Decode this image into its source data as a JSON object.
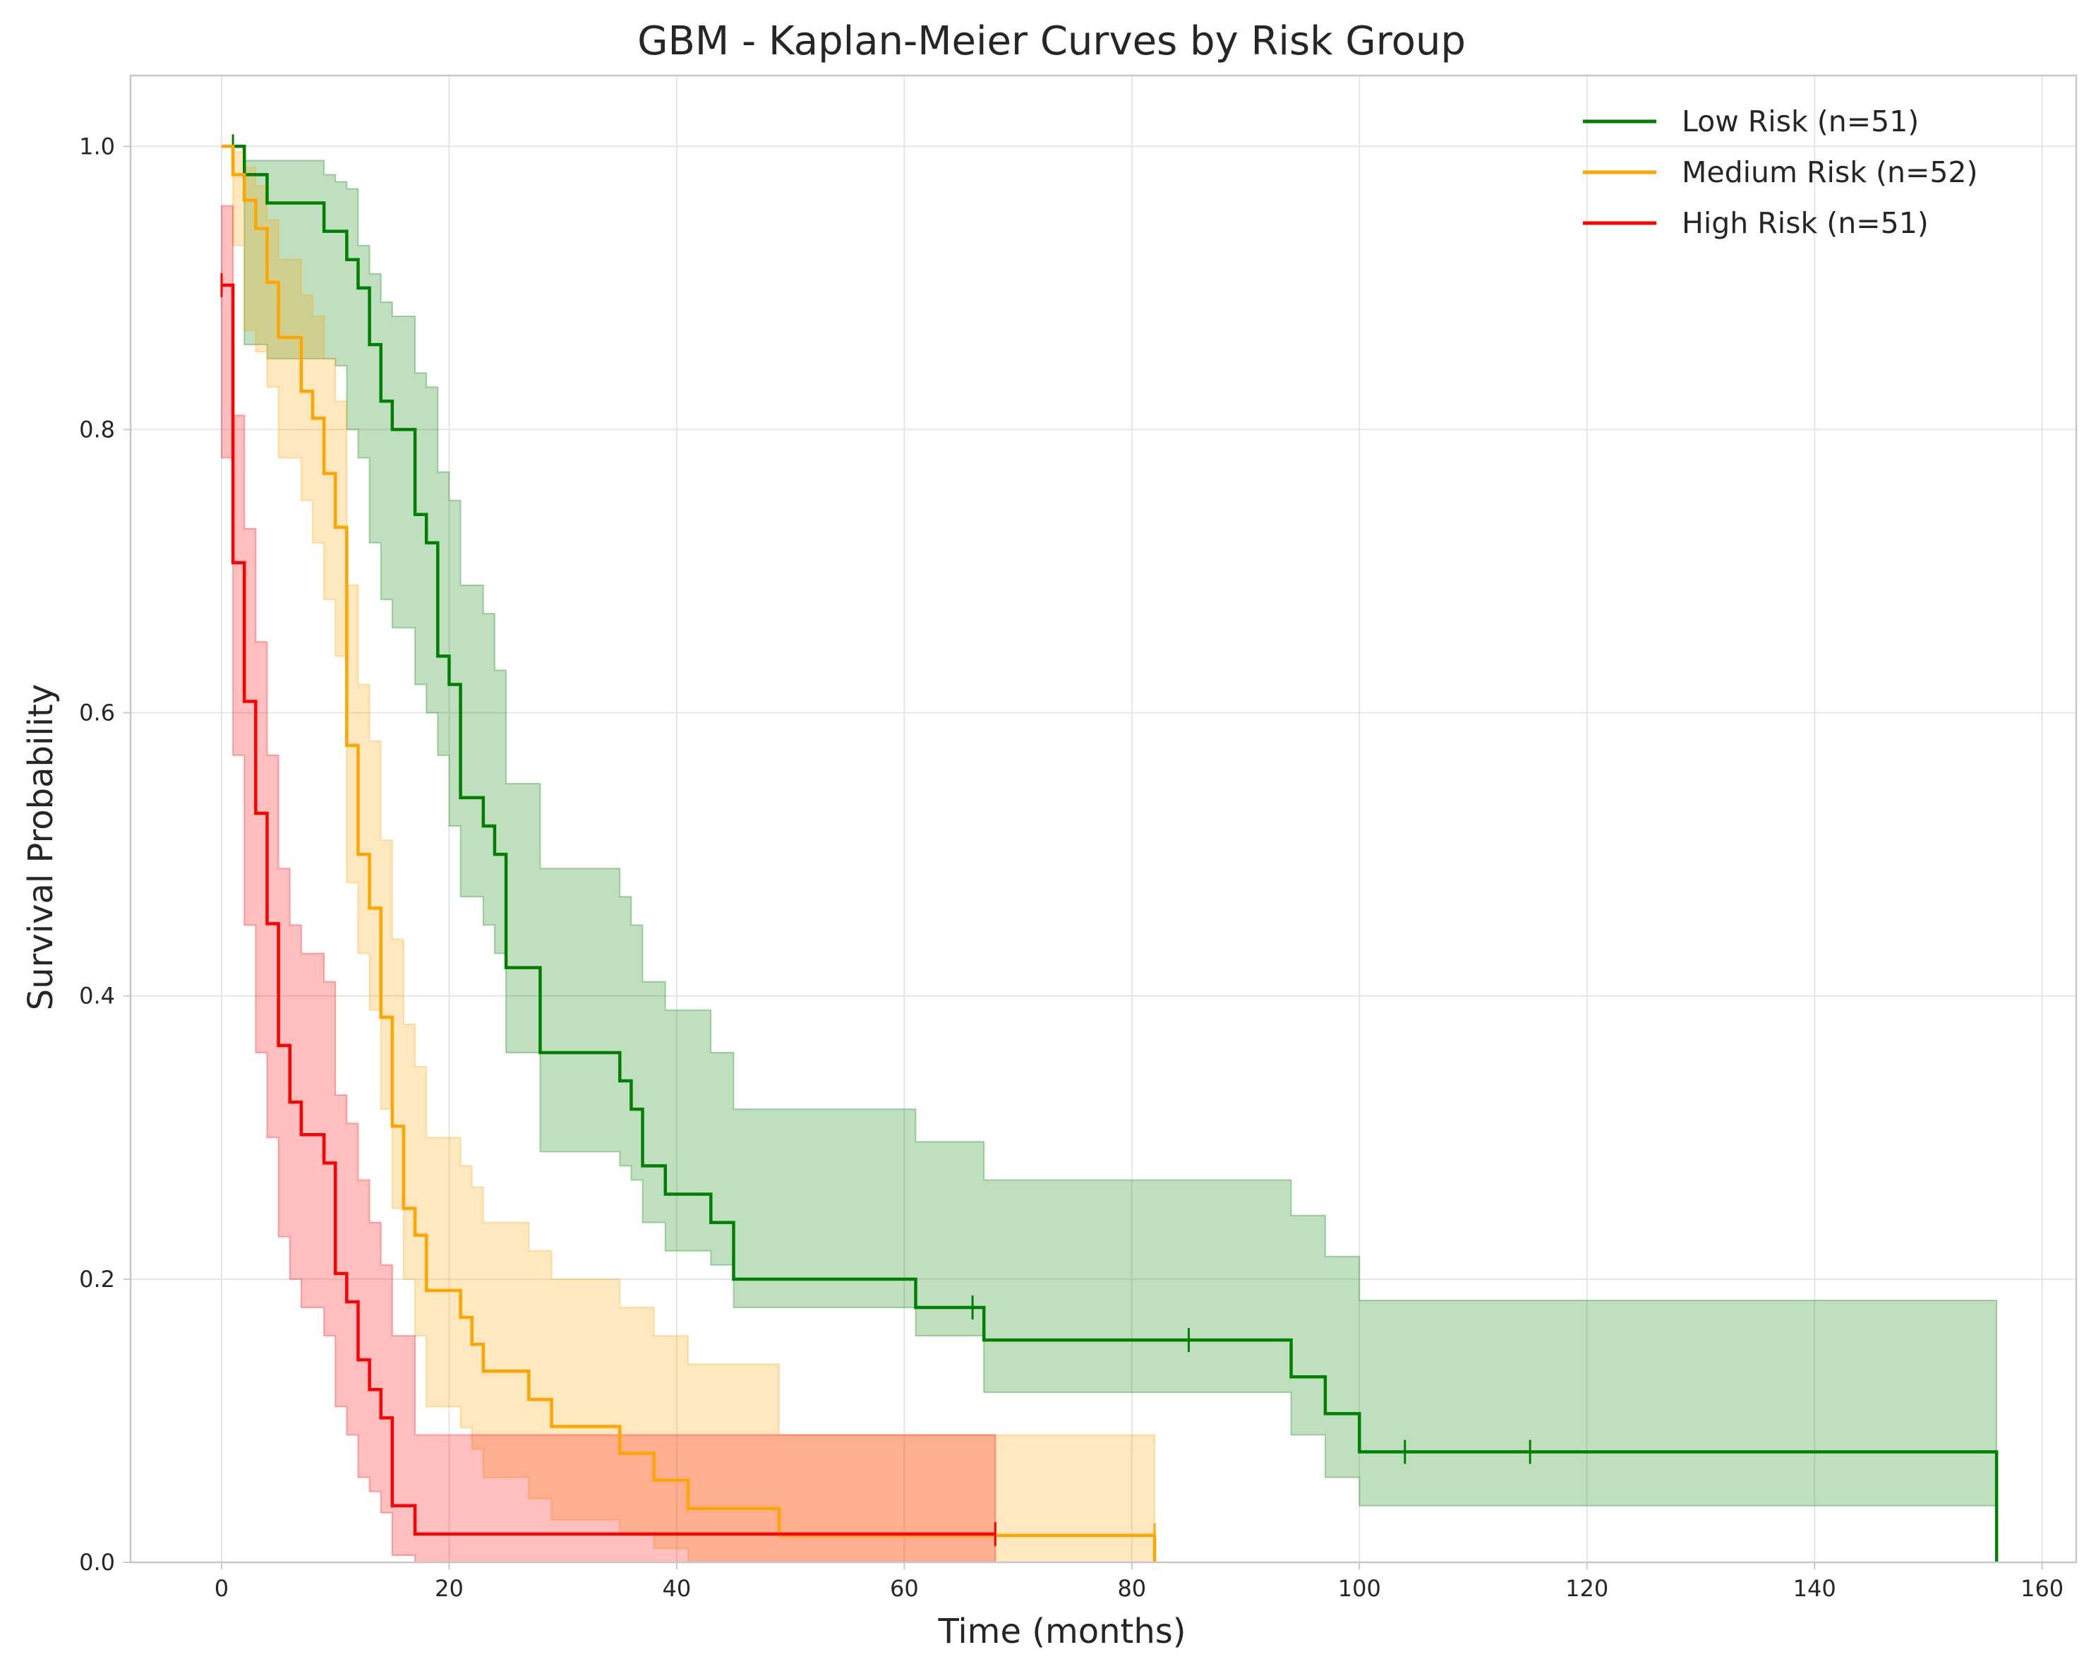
{
  "chart_data": {
    "type": "line",
    "title": "GBM - Kaplan-Meier Curves by Risk Group",
    "xlabel": "Time (months)",
    "ylabel": "Survival Probability",
    "xlim": [
      -8,
      163
    ],
    "ylim": [
      0,
      1.05
    ],
    "xticks": [
      0,
      20,
      40,
      60,
      80,
      100,
      120,
      140,
      160
    ],
    "yticks": [
      0.0,
      0.2,
      0.4,
      0.6,
      0.8,
      1.0
    ],
    "xtick_labels": [
      "0",
      "20",
      "40",
      "60",
      "80",
      "100",
      "120",
      "140",
      "160"
    ],
    "ytick_labels": [
      "0.0",
      "0.2",
      "0.4",
      "0.6",
      "0.8",
      "1.0"
    ],
    "grid": true,
    "legend_position": "top-right",
    "series": [
      {
        "name": "Low Risk (n=51)",
        "color": "#008000",
        "steps": [
          [
            0,
            1.0
          ],
          [
            1,
            1.0
          ],
          [
            2,
            0.98
          ],
          [
            4,
            0.96
          ],
          [
            9,
            0.94
          ],
          [
            11,
            0.92
          ],
          [
            12,
            0.9
          ],
          [
            13,
            0.86
          ],
          [
            14,
            0.82
          ],
          [
            15,
            0.8
          ],
          [
            17,
            0.74
          ],
          [
            18,
            0.72
          ],
          [
            19,
            0.64
          ],
          [
            20,
            0.62
          ],
          [
            21,
            0.54
          ],
          [
            23,
            0.52
          ],
          [
            24,
            0.5
          ],
          [
            25,
            0.42
          ],
          [
            28,
            0.36
          ],
          [
            35,
            0.34
          ],
          [
            36,
            0.32
          ],
          [
            37,
            0.28
          ],
          [
            39,
            0.26
          ],
          [
            43,
            0.24
          ],
          [
            45,
            0.2
          ],
          [
            61,
            0.18
          ],
          [
            67,
            0.157
          ],
          [
            94,
            0.131
          ],
          [
            97,
            0.105
          ],
          [
            100,
            0.078
          ],
          [
            156,
            0.078
          ],
          [
            156,
            0.0
          ]
        ],
        "ci": [
          [
            0,
            1.0,
            1.0
          ],
          [
            2,
            0.99,
            0.86
          ],
          [
            4,
            0.99,
            0.85
          ],
          [
            9,
            0.98,
            0.85
          ],
          [
            10,
            0.975,
            0.845
          ],
          [
            11,
            0.97,
            0.8
          ],
          [
            12,
            0.93,
            0.78
          ],
          [
            13,
            0.91,
            0.72
          ],
          [
            14,
            0.89,
            0.68
          ],
          [
            15,
            0.88,
            0.66
          ],
          [
            17,
            0.84,
            0.62
          ],
          [
            18,
            0.83,
            0.6
          ],
          [
            19,
            0.77,
            0.57
          ],
          [
            20,
            0.75,
            0.52
          ],
          [
            21,
            0.69,
            0.47
          ],
          [
            23,
            0.67,
            0.45
          ],
          [
            24,
            0.63,
            0.43
          ],
          [
            25,
            0.55,
            0.36
          ],
          [
            28,
            0.49,
            0.29
          ],
          [
            35,
            0.47,
            0.28
          ],
          [
            36,
            0.45,
            0.27
          ],
          [
            37,
            0.41,
            0.24
          ],
          [
            39,
            0.39,
            0.22
          ],
          [
            43,
            0.36,
            0.21
          ],
          [
            45,
            0.32,
            0.18
          ],
          [
            61,
            0.297,
            0.16
          ],
          [
            67,
            0.27,
            0.12
          ],
          [
            94,
            0.245,
            0.09
          ],
          [
            97,
            0.216,
            0.06
          ],
          [
            100,
            0.185,
            0.04
          ],
          [
            156,
            0.185,
            0.04
          ]
        ],
        "censored": [
          [
            1,
            1.0
          ],
          [
            66,
            0.18
          ],
          [
            85,
            0.157
          ],
          [
            104,
            0.078
          ],
          [
            115,
            0.078
          ]
        ]
      },
      {
        "name": "Medium Risk (n=52)",
        "color": "#ffa500",
        "steps": [
          [
            0,
            1.0
          ],
          [
            1,
            1.0
          ],
          [
            1,
            0.98
          ],
          [
            2,
            0.962
          ],
          [
            3,
            0.942
          ],
          [
            4,
            0.904
          ],
          [
            5,
            0.865
          ],
          [
            7,
            0.827
          ],
          [
            8,
            0.808
          ],
          [
            9,
            0.769
          ],
          [
            10,
            0.731
          ],
          [
            11,
            0.577
          ],
          [
            12,
            0.5
          ],
          [
            13,
            0.462
          ],
          [
            14,
            0.385
          ],
          [
            15,
            0.308
          ],
          [
            16,
            0.25
          ],
          [
            17,
            0.231
          ],
          [
            18,
            0.192
          ],
          [
            21,
            0.173
          ],
          [
            22,
            0.154
          ],
          [
            23,
            0.135
          ],
          [
            27,
            0.115
          ],
          [
            29,
            0.096
          ],
          [
            35,
            0.077
          ],
          [
            38,
            0.058
          ],
          [
            41,
            0.038
          ],
          [
            49,
            0.019
          ],
          [
            82,
            0.019
          ],
          [
            82,
            0.0
          ]
        ],
        "ci": [
          [
            0,
            1.0,
            1.0
          ],
          [
            1,
            0.996,
            0.93
          ],
          [
            2,
            0.985,
            0.87
          ],
          [
            3,
            0.972,
            0.855
          ],
          [
            4,
            0.948,
            0.83
          ],
          [
            5,
            0.92,
            0.78
          ],
          [
            7,
            0.895,
            0.75
          ],
          [
            8,
            0.88,
            0.72
          ],
          [
            9,
            0.85,
            0.68
          ],
          [
            10,
            0.82,
            0.64
          ],
          [
            11,
            0.69,
            0.48
          ],
          [
            12,
            0.62,
            0.43
          ],
          [
            13,
            0.58,
            0.39
          ],
          [
            14,
            0.51,
            0.32
          ],
          [
            15,
            0.44,
            0.25
          ],
          [
            16,
            0.38,
            0.2
          ],
          [
            17,
            0.35,
            0.16
          ],
          [
            18,
            0.3,
            0.11
          ],
          [
            21,
            0.28,
            0.095
          ],
          [
            22,
            0.265,
            0.08
          ],
          [
            23,
            0.24,
            0.06
          ],
          [
            27,
            0.22,
            0.045
          ],
          [
            29,
            0.2,
            0.03
          ],
          [
            35,
            0.18,
            0.02
          ],
          [
            38,
            0.16,
            0.01
          ],
          [
            41,
            0.14,
            0.0
          ],
          [
            49,
            0.09,
            0.0
          ],
          [
            82,
            0.09,
            0.0
          ]
        ],
        "censored": [
          [
            82,
            0.019
          ]
        ]
      },
      {
        "name": "High Risk (n=51)",
        "color": "#ff0000",
        "steps": [
          [
            0,
            0.902
          ],
          [
            1,
            0.902
          ],
          [
            1,
            0.706
          ],
          [
            2,
            0.706
          ],
          [
            2,
            0.608
          ],
          [
            3,
            0.608
          ],
          [
            3,
            0.529
          ],
          [
            4,
            0.529
          ],
          [
            4,
            0.451
          ],
          [
            5,
            0.451
          ],
          [
            5,
            0.365
          ],
          [
            6,
            0.365
          ],
          [
            6,
            0.325
          ],
          [
            7,
            0.325
          ],
          [
            7,
            0.302
          ],
          [
            9,
            0.302
          ],
          [
            9,
            0.282
          ],
          [
            10,
            0.282
          ],
          [
            10,
            0.204
          ],
          [
            11,
            0.204
          ],
          [
            11,
            0.184
          ],
          [
            12,
            0.184
          ],
          [
            12,
            0.143
          ],
          [
            13,
            0.143
          ],
          [
            13,
            0.122
          ],
          [
            14,
            0.122
          ],
          [
            14,
            0.102
          ],
          [
            15,
            0.102
          ],
          [
            15,
            0.04
          ],
          [
            17,
            0.04
          ],
          [
            17,
            0.02
          ],
          [
            68,
            0.02
          ]
        ],
        "ci": [
          [
            0,
            0.958,
            0.78
          ],
          [
            1,
            0.81,
            0.57
          ],
          [
            2,
            0.73,
            0.45
          ],
          [
            3,
            0.65,
            0.36
          ],
          [
            4,
            0.57,
            0.3
          ],
          [
            5,
            0.49,
            0.23
          ],
          [
            6,
            0.45,
            0.2
          ],
          [
            7,
            0.43,
            0.18
          ],
          [
            9,
            0.41,
            0.16
          ],
          [
            10,
            0.33,
            0.11
          ],
          [
            11,
            0.31,
            0.09
          ],
          [
            12,
            0.27,
            0.06
          ],
          [
            13,
            0.24,
            0.05
          ],
          [
            14,
            0.21,
            0.035
          ],
          [
            15,
            0.16,
            0.005
          ],
          [
            17,
            0.09,
            0.0
          ],
          [
            68,
            0.09,
            0.0
          ]
        ],
        "censored": [
          [
            0,
            0.902
          ],
          [
            68,
            0.02
          ]
        ]
      }
    ]
  }
}
